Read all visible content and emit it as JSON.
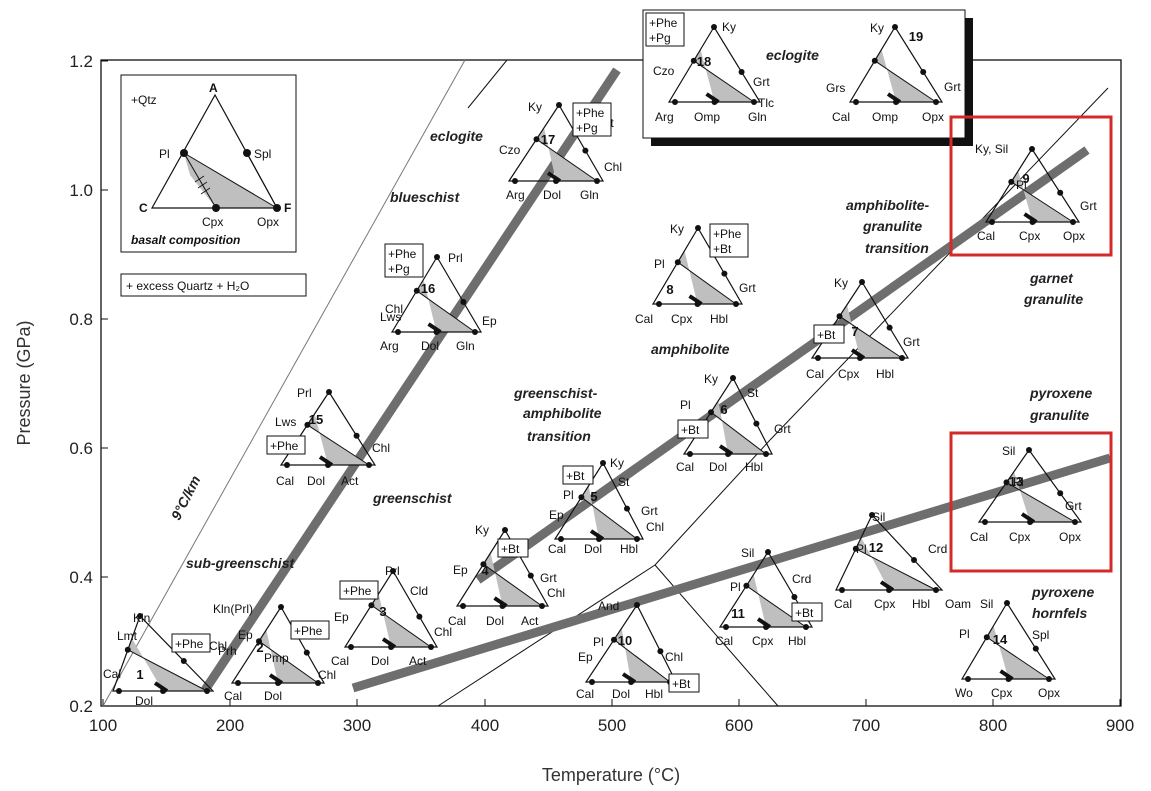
{
  "axes": {
    "x_label": "Temperature (°C)",
    "y_label": "Pressure (GPa)",
    "x_ticks": [
      "100",
      "200",
      "300",
      "400",
      "500",
      "600",
      "700",
      "800",
      "900"
    ],
    "y_ticks": [
      "0.2",
      "0.4",
      "0.6",
      "0.8",
      "1.0",
      "1.2"
    ]
  },
  "gradient_label": "9°C/km",
  "legend": {
    "qtz": "+Qtz",
    "vertices": [
      "A",
      "C",
      "F"
    ],
    "minerals": [
      "Pl",
      "Spl",
      "Cpx",
      "Opx"
    ],
    "caption": "basalt composition",
    "note": "+ excess Quartz + H₂O"
  },
  "facies": {
    "sub_greenschist": "sub-greenschist",
    "greenschist": "greenschist",
    "blueschist": "blueschist",
    "eclogite_main": "eclogite",
    "eclogite_inset": "eclogite",
    "gs_amph_1": "greenschist-",
    "gs_amph_2": "amphibolite",
    "gs_amph_3": "transition",
    "amphibolite": "amphibolite",
    "amph_gran_1": "amphibolite-",
    "amph_gran_2": "granulite",
    "amph_gran_3": "transition",
    "garnet_gran_1": "garnet",
    "garnet_gran_2": "granulite",
    "pyx_gran_1": "pyroxene",
    "pyx_gran_2": "granulite",
    "pyx_horn_1": "pyroxene",
    "pyx_horn_2": "hornfels"
  },
  "diagrams": [
    {
      "num": "1",
      "labels": [
        "Kln",
        "Lmt",
        "Cal",
        "Dol",
        "Chl"
      ],
      "box": [
        "+Phe"
      ]
    },
    {
      "num": "2",
      "labels": [
        "Kln(Prl)",
        "Ep",
        "Prh",
        "Pmp",
        "Cal",
        "Dol",
        "Chl"
      ],
      "box": [
        "+Phe"
      ]
    },
    {
      "num": "3",
      "labels": [
        "Prl",
        "Cld",
        "Ep",
        "Cal",
        "Dol",
        "Act",
        "Chl"
      ],
      "box": [
        "+Phe"
      ]
    },
    {
      "num": "4",
      "labels": [
        "Ky",
        "Ep",
        "Grt",
        "Chl",
        "Cal",
        "Dol",
        "Act"
      ],
      "box": [
        "+Bt"
      ]
    },
    {
      "num": "5",
      "labels": [
        "Ky",
        "St",
        "Pl",
        "Ep",
        "Grt",
        "Chl",
        "Cal",
        "Dol",
        "Hbl"
      ],
      "box": [
        "+Bt"
      ]
    },
    {
      "num": "6",
      "labels": [
        "Ky",
        "St",
        "Pl",
        "Grt",
        "Cal",
        "Dol",
        "Hbl"
      ],
      "box": [
        "+Bt"
      ]
    },
    {
      "num": "7",
      "labels": [
        "Ky",
        "Grt",
        "Cal",
        "Cpx",
        "Hbl"
      ],
      "box": [
        "+Bt"
      ]
    },
    {
      "num": "8",
      "labels": [
        "Ky",
        "Pl",
        "Grt",
        "Cal",
        "Cpx",
        "Hbl"
      ],
      "box": [
        "+Phe",
        "+Bt"
      ]
    },
    {
      "num": "9",
      "labels": [
        "Ky, Sil",
        "Pl",
        "Grt",
        "Cal",
        "Cpx",
        "Opx"
      ],
      "box": []
    },
    {
      "num": "10",
      "labels": [
        "And",
        "Pl",
        "Ep",
        "Chl",
        "Cal",
        "Dol",
        "Hbl"
      ],
      "box": [
        "+Bt"
      ]
    },
    {
      "num": "11",
      "labels": [
        "Sil",
        "Pl",
        "Crd",
        "Cal",
        "Cpx",
        "Hbl"
      ],
      "box": [
        "+Bt"
      ]
    },
    {
      "num": "12",
      "labels": [
        "Sil",
        "Pl",
        "Crd",
        "Cal",
        "Cpx",
        "Hbl",
        "Oam"
      ],
      "box": []
    },
    {
      "num": "13",
      "labels": [
        "Sil",
        "Pl",
        "Grt",
        "Cal",
        "Cpx",
        "Opx"
      ],
      "box": []
    },
    {
      "num": "14",
      "labels": [
        "Sil",
        "Pl",
        "Spl",
        "Wo",
        "Cpx",
        "Opx"
      ],
      "box": []
    },
    {
      "num": "15",
      "labels": [
        "Prl",
        "Lws",
        "Chl",
        "Cal",
        "Dol",
        "Act"
      ],
      "box": [
        "+Phe"
      ]
    },
    {
      "num": "16",
      "labels": [
        "Prl",
        "Lws",
        "Ep",
        "Chl",
        "Arg",
        "Dol",
        "Gln"
      ],
      "box": [
        "+Phe",
        "+Pg"
      ]
    },
    {
      "num": "17",
      "labels": [
        "Ky",
        "Czo",
        "Grt",
        "Chl",
        "Arg",
        "Dol",
        "Gln"
      ],
      "box": [
        "+Phe",
        "+Pg"
      ]
    },
    {
      "num": "18",
      "labels": [
        "Ky",
        "Czo",
        "Grt",
        "Tlc",
        "Arg",
        "Omp",
        "Gln"
      ],
      "box": [
        "+Phe",
        "+Pg"
      ]
    },
    {
      "num": "19",
      "labels": [
        "Ky",
        "Grs",
        "Grt",
        "Cal",
        "Omp",
        "Opx"
      ],
      "box": []
    }
  ],
  "colors": {
    "highlight": "#d42a2a",
    "gradient": "#6e6e6e",
    "shade": "#bfbfbf"
  }
}
